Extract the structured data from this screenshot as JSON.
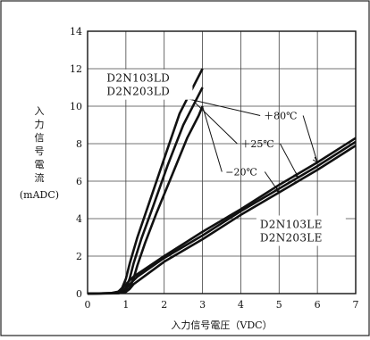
{
  "chart_data": {
    "type": "line",
    "top_caption": "",
    "xlabel": "入力信号電圧（VDC）",
    "ylabel_lines": [
      "入",
      "力",
      "信",
      "号",
      "電",
      "流"
    ],
    "ylabel_unit": "(mADC)",
    "xlim": [
      0,
      7
    ],
    "ylim": [
      0,
      14
    ],
    "x_ticks": [
      "0",
      "1",
      "2",
      "3",
      "4",
      "5",
      "6",
      "7"
    ],
    "y_ticks": [
      "0",
      "2",
      "4",
      "6",
      "8",
      "10",
      "12",
      "14"
    ],
    "grid": true,
    "device_groups": [
      {
        "lines": [
          "D2N103LD",
          "D2N203LD"
        ]
      },
      {
        "lines": [
          "D2N103LE",
          "D2N203LE"
        ]
      }
    ],
    "series": [
      {
        "name": "+80℃",
        "group": "LD",
        "x": [
          0,
          0.6,
          0.8,
          0.9,
          1.0,
          1.1,
          1.3,
          1.6,
          2.0,
          2.4,
          2.7,
          3.0
        ],
        "y": [
          0,
          0.02,
          0.1,
          0.3,
          0.8,
          1.6,
          3.0,
          4.8,
          7.2,
          9.6,
          10.8,
          12.0
        ]
      },
      {
        "name": "+25℃",
        "group": "LD",
        "x": [
          0,
          0.7,
          0.9,
          1.0,
          1.1,
          1.2,
          1.4,
          1.7,
          2.1,
          2.5,
          2.8,
          3.0
        ],
        "y": [
          0,
          0.02,
          0.1,
          0.3,
          0.8,
          1.6,
          2.9,
          4.6,
          6.9,
          9.0,
          10.2,
          11.0
        ]
      },
      {
        "name": "−20℃",
        "group": "LD",
        "x": [
          0,
          0.8,
          1.0,
          1.1,
          1.2,
          1.3,
          1.5,
          1.8,
          2.2,
          2.6,
          2.9,
          3.0
        ],
        "y": [
          0,
          0.02,
          0.1,
          0.3,
          0.8,
          1.5,
          2.7,
          4.3,
          6.3,
          8.3,
          9.5,
          10.0
        ]
      },
      {
        "name": "+80℃",
        "group": "LE",
        "x": [
          0,
          0.6,
          0.8,
          0.9,
          1.0,
          1.2,
          2.0,
          3.0,
          4.0,
          5.0,
          6.0,
          7.0
        ],
        "y": [
          0,
          0.02,
          0.1,
          0.25,
          0.5,
          0.9,
          2.0,
          3.3,
          4.5,
          5.8,
          7.0,
          8.3
        ]
      },
      {
        "name": "+25℃",
        "group": "LE",
        "x": [
          0,
          0.7,
          0.9,
          1.0,
          1.1,
          1.3,
          2.0,
          3.0,
          4.0,
          5.0,
          6.0,
          7.0
        ],
        "y": [
          0,
          0.02,
          0.1,
          0.25,
          0.5,
          0.9,
          1.9,
          3.1,
          4.4,
          5.6,
          6.8,
          8.1
        ]
      },
      {
        "name": "−20℃",
        "group": "LE",
        "x": [
          0,
          0.8,
          1.0,
          1.1,
          1.2,
          1.4,
          2.0,
          3.0,
          4.0,
          5.0,
          6.0,
          7.0
        ],
        "y": [
          0,
          0.02,
          0.1,
          0.25,
          0.5,
          0.8,
          1.7,
          2.9,
          4.2,
          5.4,
          6.6,
          7.9
        ]
      }
    ],
    "annotations": [
      {
        "text": "＋80℃",
        "x": 4.6,
        "y": 9.5
      },
      {
        "text": "＋25℃",
        "x": 4.0,
        "y": 8.0
      },
      {
        "text": "−20℃",
        "x": 3.6,
        "y": 6.5
      }
    ]
  }
}
